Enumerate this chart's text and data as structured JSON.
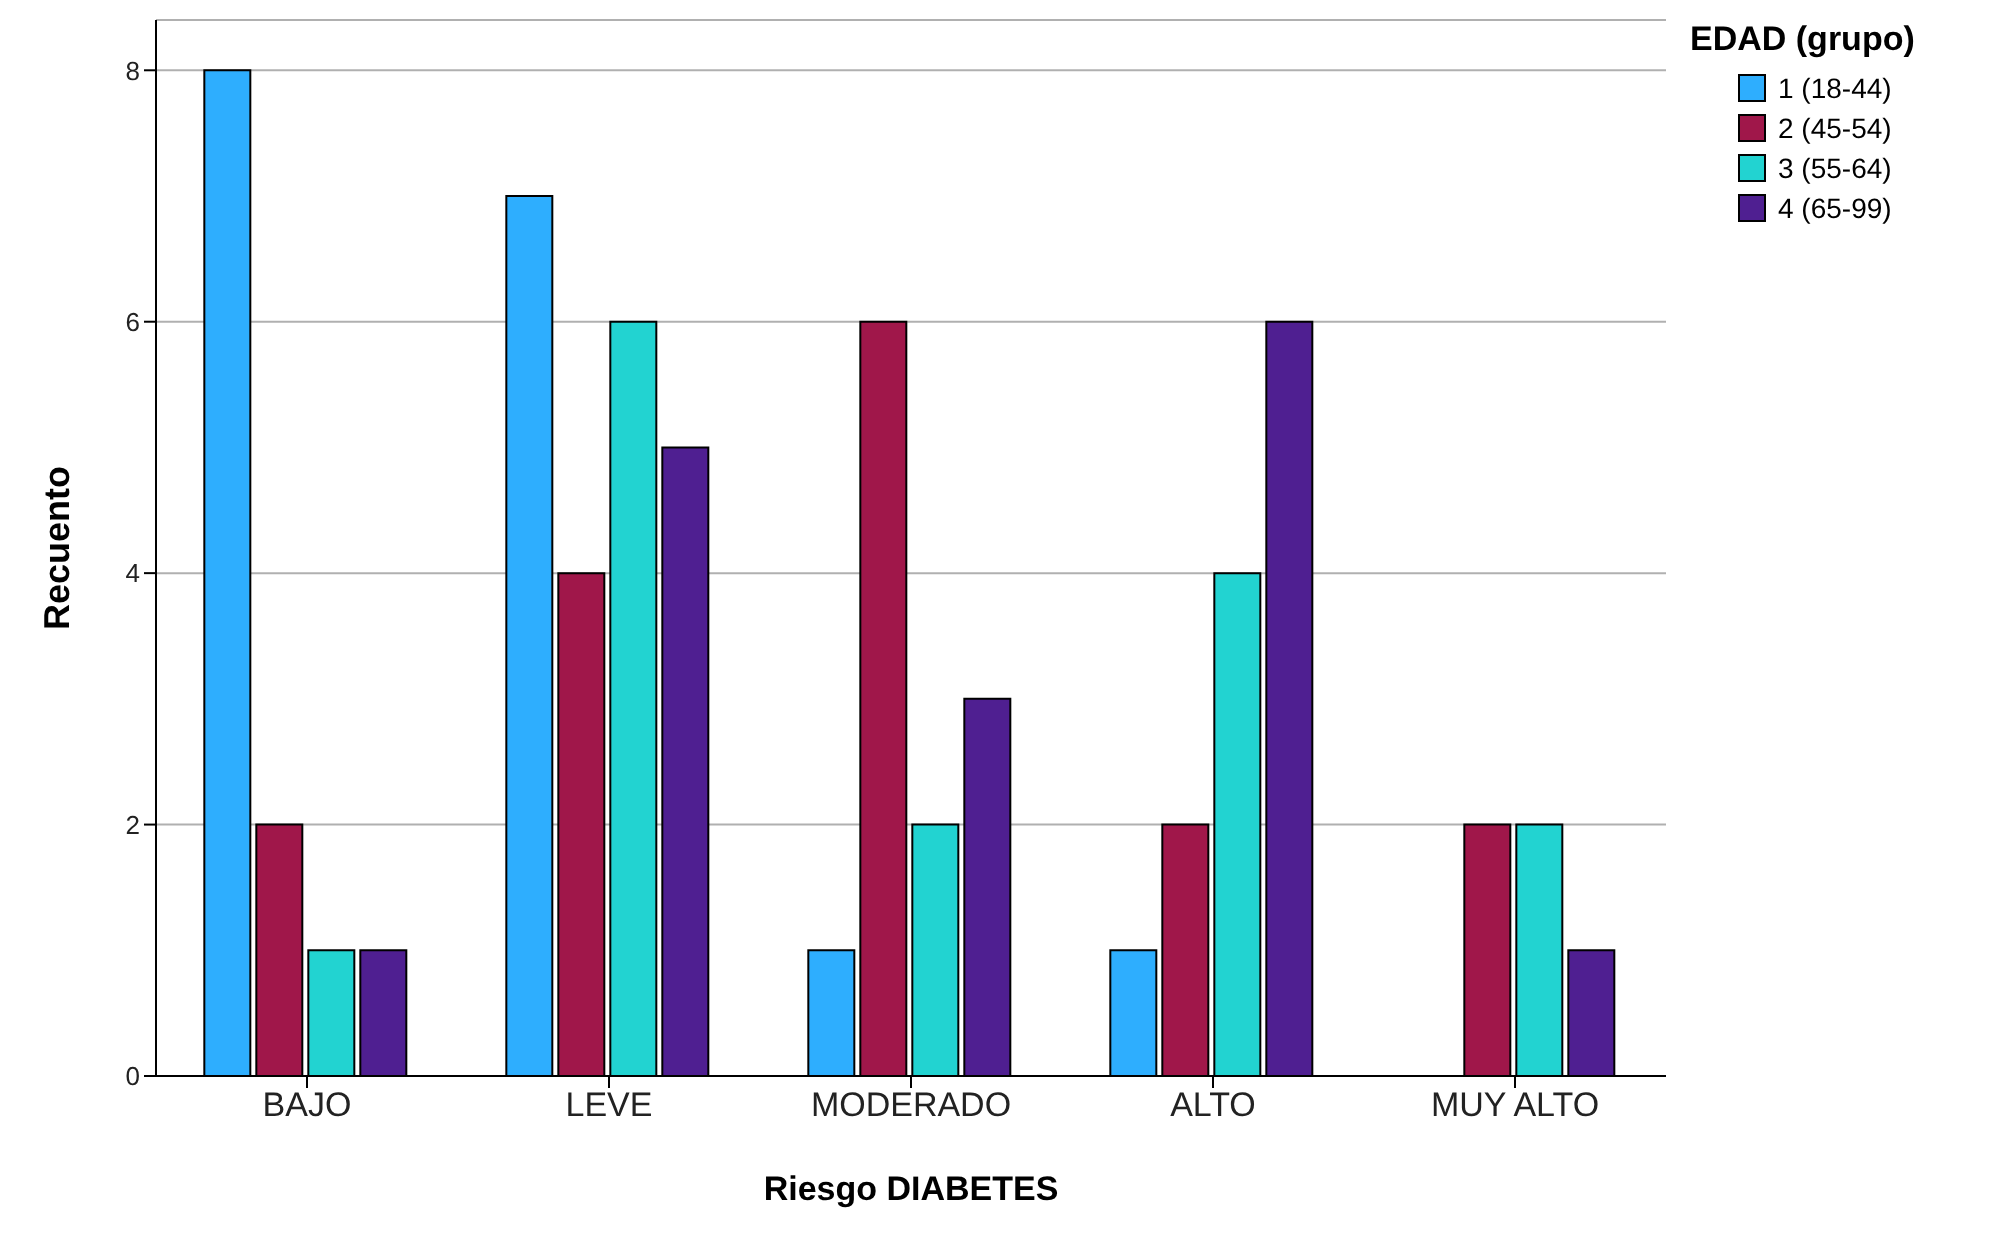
{
  "chart_data": {
    "type": "bar",
    "xlabel": "Riesgo DIABETES",
    "ylabel": "Recuento",
    "legend_title": "EDAD (grupo)",
    "categories": [
      "BAJO",
      "LEVE",
      "MODERADO",
      "ALTO",
      "MUY ALTO"
    ],
    "series": [
      {
        "name": "1 (18-44)",
        "color": "#2eaefe",
        "values": [
          8,
          7,
          1,
          1,
          0
        ]
      },
      {
        "name": "2 (45-54)",
        "color": "#a0174a",
        "values": [
          2,
          4,
          6,
          2,
          2
        ]
      },
      {
        "name": "3 (55-64)",
        "color": "#22d3d1",
        "values": [
          1,
          6,
          2,
          4,
          2
        ]
      },
      {
        "name": "4 (65-99)",
        "color": "#4f1f91",
        "values": [
          1,
          5,
          3,
          6,
          1
        ]
      }
    ],
    "ylim": [
      0,
      8.4
    ],
    "yticks": [
      0,
      2,
      4,
      6,
      8
    ],
    "grid": "y",
    "legend": "right"
  }
}
